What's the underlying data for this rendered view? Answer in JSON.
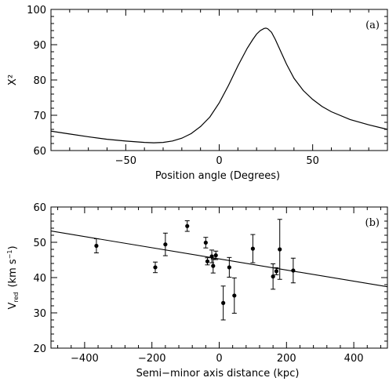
{
  "chart_data": [
    {
      "type": "line",
      "panel_label": "(a)",
      "xlabel": "Position angle (Degrees)",
      "ylabel": "X²",
      "xlim": [
        -90,
        90
      ],
      "ylim": [
        60,
        100
      ],
      "xticks": [
        -50,
        0,
        50
      ],
      "yticks": [
        60,
        70,
        80,
        90,
        100
      ],
      "series": [
        {
          "x": [
            -90,
            -80,
            -70,
            -60,
            -50,
            -40,
            -35,
            -30,
            -25,
            -20,
            -15,
            -10,
            -5,
            0,
            5,
            10,
            15,
            18,
            20,
            22,
            24,
            25,
            26,
            28,
            30,
            33,
            36,
            40,
            45,
            50,
            55,
            60,
            70,
            80,
            90
          ],
          "y": [
            65.5,
            64.7,
            63.9,
            63.2,
            62.7,
            62.3,
            62.2,
            62.3,
            62.7,
            63.5,
            64.8,
            66.8,
            69.5,
            73.5,
            78.5,
            84.0,
            89.0,
            91.5,
            93.0,
            94.0,
            94.6,
            94.7,
            94.5,
            93.5,
            91.5,
            88.0,
            84.5,
            80.5,
            77.0,
            74.5,
            72.5,
            71.0,
            68.8,
            67.3,
            66.0
          ]
        }
      ]
    },
    {
      "type": "scatter",
      "panel_label": "(b)",
      "xlabel": "Semi−minor axis distance (kpc)",
      "ylabel_main": "V",
      "ylabel_sub": "red",
      "ylabel_unit": "(km s",
      "ylabel_unit_sup": "−1",
      "ylabel_unit_close": ")",
      "xlim": [
        -500,
        500
      ],
      "ylim": [
        20,
        60
      ],
      "xticks": [
        -400,
        -200,
        0,
        200,
        400
      ],
      "yticks": [
        20,
        30,
        40,
        50,
        60
      ],
      "fit_line": {
        "x": [
          -500,
          500
        ],
        "y": [
          53.2,
          37.4
        ]
      },
      "points": [
        {
          "x": -365,
          "y": 49.0,
          "err": 2.0
        },
        {
          "x": -190,
          "y": 42.9,
          "err": 1.5
        },
        {
          "x": -160,
          "y": 49.4,
          "err": 3.2
        },
        {
          "x": -95,
          "y": 54.6,
          "err": 1.5
        },
        {
          "x": -40,
          "y": 49.9,
          "err": 1.5
        },
        {
          "x": -35,
          "y": 44.6,
          "err": 1.0
        },
        {
          "x": -22,
          "y": 46.0,
          "err": 1.8
        },
        {
          "x": -18,
          "y": 43.3,
          "err": 2.0
        },
        {
          "x": -10,
          "y": 46.3,
          "err": 1.2
        },
        {
          "x": 12,
          "y": 32.8,
          "err": 4.8
        },
        {
          "x": 30,
          "y": 42.9,
          "err": 2.8
        },
        {
          "x": 45,
          "y": 34.9,
          "err": 5.0
        },
        {
          "x": 100,
          "y": 48.2,
          "err": 4.0
        },
        {
          "x": 160,
          "y": 40.3,
          "err": 3.6
        },
        {
          "x": 170,
          "y": 41.8,
          "err": 1.0
        },
        {
          "x": 180,
          "y": 48.0,
          "err": 8.5
        },
        {
          "x": 220,
          "y": 42.0,
          "err": 3.5
        }
      ]
    }
  ]
}
